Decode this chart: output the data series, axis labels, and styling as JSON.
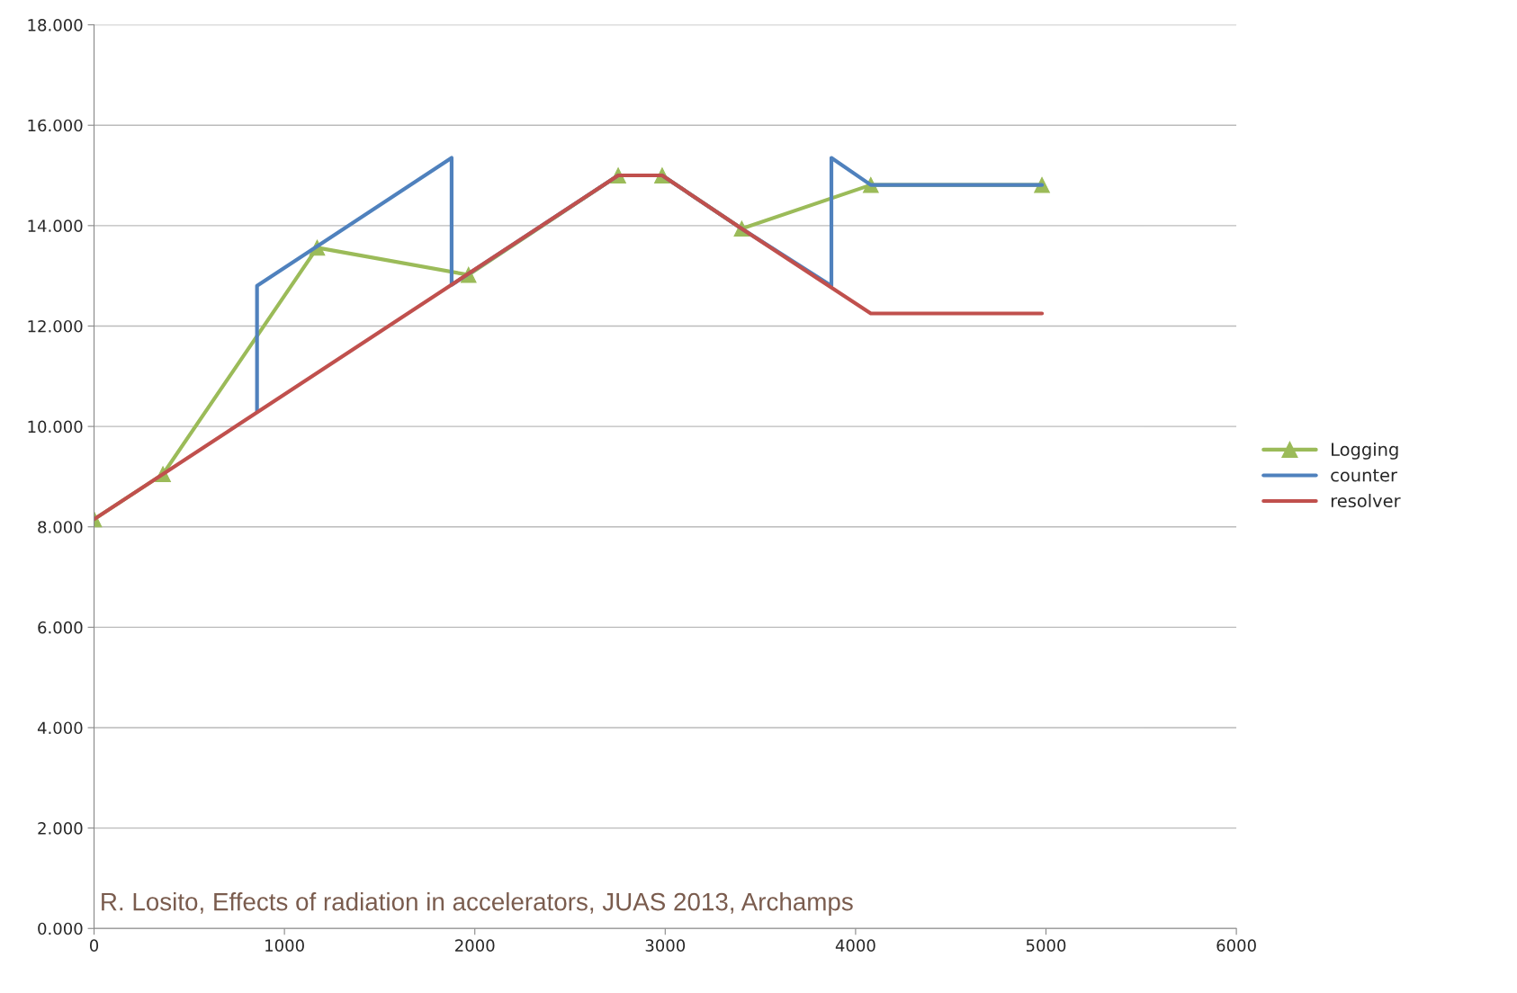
{
  "chart_data": {
    "type": "line",
    "series": [
      {
        "name": "Logging",
        "color": "#9bbb59",
        "marker": "triangle",
        "x": [
          0,
          362,
          1172,
          1967,
          2753,
          2984,
          3402,
          4080,
          4979
        ],
        "values": [
          8.15,
          9.05,
          13.56,
          13.02,
          15.0,
          15.0,
          13.94,
          14.81,
          14.81
        ]
      },
      {
        "name": "counter",
        "color": "#4f81bd",
        "marker": "none",
        "x": [
          856,
          856,
          1878,
          1878,
          2753,
          2984,
          3402,
          3873,
          3873,
          4080,
          4979
        ],
        "values": [
          10.3,
          12.8,
          15.35,
          12.82,
          15.0,
          15.0,
          13.94,
          12.8,
          15.35,
          14.81,
          14.81
        ]
      },
      {
        "name": "resolver",
        "color": "#c0504d",
        "marker": "none",
        "x": [
          0,
          2753,
          2984,
          3402,
          4080,
          4979
        ],
        "values": [
          8.15,
          15.0,
          15.0,
          13.94,
          12.25,
          12.25
        ]
      }
    ],
    "xlim": [
      0,
      6000
    ],
    "xticks": [
      0,
      1000,
      2000,
      3000,
      4000,
      5000,
      6000
    ],
    "ylim": [
      0,
      18
    ],
    "yticks": [
      {
        "value": 0,
        "label": "0.000"
      },
      {
        "value": 2,
        "label": "2.000"
      },
      {
        "value": 4,
        "label": "4.000"
      },
      {
        "value": 6,
        "label": "6.000"
      },
      {
        "value": 8,
        "label": "8.000"
      },
      {
        "value": 10,
        "label": "10.000"
      },
      {
        "value": 12,
        "label": "12.000"
      },
      {
        "value": 14,
        "label": "14.000"
      },
      {
        "value": 16,
        "label": "16.000"
      },
      {
        "value": 18,
        "label": "18.000"
      }
    ],
    "grid": "y",
    "legend": "right",
    "line_style": "solid",
    "annotations": [
      "R. Losito, Effects of radiation in accelerators, JUAS 2013, Archamps"
    ]
  }
}
